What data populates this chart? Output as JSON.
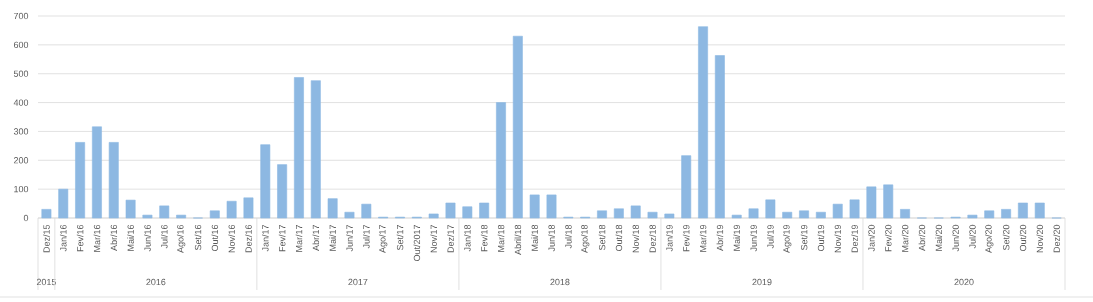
{
  "chart_data": {
    "type": "bar",
    "categories": [
      "Dez/15",
      "Jan/16",
      "Fev/16",
      "Mar/16",
      "Abr/16",
      "Mai/16",
      "Jun/16",
      "Jul/16",
      "Ago/16",
      "Set/16",
      "Out/16",
      "Nov/16",
      "Dez/16",
      "Jan/17",
      "Fev/17",
      "Mar/17",
      "Abr/17",
      "Mai/17",
      "Jun/17",
      "Jul/17",
      "Ago/17",
      "Set/17",
      "Out/2017",
      "Nov/17",
      "Dez/17",
      "Jan/18",
      "Fev/18",
      "Mar/18",
      "Abril/18",
      "Mai/18",
      "Jun/18",
      "Jul/18",
      "Ago/18",
      "Set/18",
      "Out/18",
      "Nov/18",
      "Dez/18",
      "Jan/19",
      "Fev/19",
      "Mar/19",
      "Abr/19",
      "Mai/19",
      "Jun/19",
      "Jul/19",
      "Ago/19",
      "Set/19",
      "Out/19",
      "Nov/19",
      "Dez/19",
      "Jan/20",
      "Fev/20",
      "Mar/20",
      "Abr/20",
      "Mai/20",
      "Jun/20",
      "Jul/20",
      "Ago/20",
      "Set/20",
      "Out/20",
      "Nov/20",
      "Dez/20"
    ],
    "values": [
      30,
      100,
      262,
      316,
      262,
      62,
      10,
      42,
      10,
      0,
      25,
      58,
      70,
      254,
      185,
      487,
      476,
      67,
      20,
      48,
      3,
      3,
      3,
      14,
      52,
      39,
      52,
      400,
      630,
      80,
      80,
      3,
      3,
      25,
      32,
      42,
      20,
      14,
      216,
      663,
      563,
      10,
      32,
      63,
      20,
      25,
      20,
      48,
      63,
      108,
      115,
      30,
      0,
      0,
      3,
      10,
      25,
      30,
      52,
      52,
      0
    ],
    "color": "#8db8e2",
    "ylim": [
      0,
      700
    ],
    "yticks": [
      0,
      100,
      200,
      300,
      400,
      500,
      600,
      700
    ],
    "grid": "y",
    "annotations": [
      "2015",
      "2016",
      "2017",
      "2018",
      "2019",
      "2020"
    ]
  }
}
